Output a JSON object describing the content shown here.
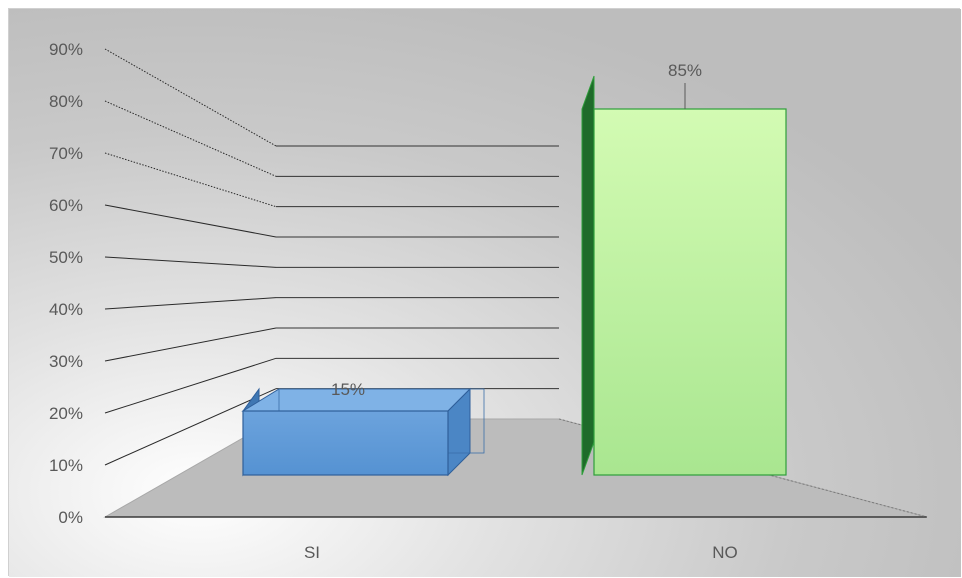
{
  "chart_data": {
    "type": "bar",
    "style": "3d-column",
    "categories": [
      "SI",
      "NO"
    ],
    "values": [
      15,
      85
    ],
    "value_labels": [
      "15%",
      "85%"
    ],
    "y_ticks": [
      "0%",
      "10%",
      "20%",
      "30%",
      "40%",
      "50%",
      "60%",
      "70%",
      "80%",
      "90%"
    ],
    "ylim": [
      0,
      90
    ],
    "grid": true,
    "legend": "none",
    "title": "",
    "xlabel": "",
    "ylabel": "",
    "colors": {
      "SI": "#5b9bd5",
      "NO": "#c6f5a3",
      "NO_border": "#2e9e3a",
      "SI_border": "#2f5f9a"
    }
  }
}
